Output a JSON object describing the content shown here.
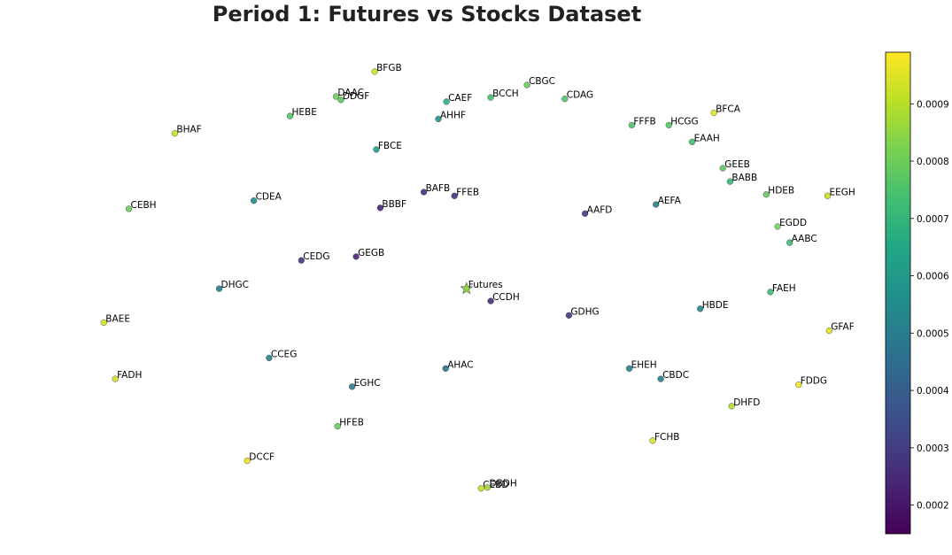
{
  "chart_data": {
    "type": "scatter",
    "title": "Period 1: Futures vs Stocks Dataset",
    "xlabel": "",
    "ylabel": "",
    "xlim": [
      0,
      1
    ],
    "ylim": [
      0,
      1
    ],
    "axes_visible": false,
    "grid": false,
    "colormap": "viridis",
    "colorbar": {
      "range": [
        0.00015,
        0.00099
      ],
      "ticks": [
        0.0002,
        0.0003,
        0.0004,
        0.0005,
        0.0006,
        0.0007,
        0.0008,
        0.0009
      ],
      "tick_labels": [
        "0.0002",
        "0.0003",
        "0.0004",
        "0.0005",
        "0.0006",
        "0.0007",
        "0.0008",
        "0.0009"
      ]
    },
    "futures": {
      "label": "Futures",
      "x": 0.502,
      "y": 0.498,
      "value": 0.00085,
      "marker": "star"
    },
    "points": [
      {
        "label": "BFGB",
        "x": 0.388,
        "y": 0.952,
        "value": 0.00093
      },
      {
        "label": "DAAC",
        "x": 0.34,
        "y": 0.9,
        "value": 0.0008
      },
      {
        "label": "DDGF",
        "x": 0.346,
        "y": 0.893,
        "value": 0.00077
      },
      {
        "label": "CAEF",
        "x": 0.477,
        "y": 0.889,
        "value": 0.00068
      },
      {
        "label": "BCCH",
        "x": 0.532,
        "y": 0.898,
        "value": 0.00074
      },
      {
        "label": "CBGC",
        "x": 0.577,
        "y": 0.924,
        "value": 0.00079
      },
      {
        "label": "CDAG",
        "x": 0.624,
        "y": 0.895,
        "value": 0.00076
      },
      {
        "label": "HEBE",
        "x": 0.283,
        "y": 0.859,
        "value": 0.00076
      },
      {
        "label": "AHHF",
        "x": 0.467,
        "y": 0.853,
        "value": 0.00058
      },
      {
        "label": "BFCA",
        "x": 0.809,
        "y": 0.866,
        "value": 0.00095
      },
      {
        "label": "FFFB",
        "x": 0.707,
        "y": 0.84,
        "value": 0.00075
      },
      {
        "label": "HCGG",
        "x": 0.753,
        "y": 0.84,
        "value": 0.00076
      },
      {
        "label": "BHAF",
        "x": 0.14,
        "y": 0.823,
        "value": 0.00092
      },
      {
        "label": "EAAH",
        "x": 0.782,
        "y": 0.805,
        "value": 0.00074
      },
      {
        "label": "FBCE",
        "x": 0.39,
        "y": 0.789,
        "value": 0.00061
      },
      {
        "label": "GEEB",
        "x": 0.82,
        "y": 0.75,
        "value": 0.00078
      },
      {
        "label": "BABB",
        "x": 0.829,
        "y": 0.722,
        "value": 0.00071
      },
      {
        "label": "BAFB",
        "x": 0.449,
        "y": 0.7,
        "value": 0.00026
      },
      {
        "label": "FFEB",
        "x": 0.487,
        "y": 0.692,
        "value": 0.00027
      },
      {
        "label": "HDEB",
        "x": 0.874,
        "y": 0.695,
        "value": 0.00079
      },
      {
        "label": "EEGH",
        "x": 0.95,
        "y": 0.692,
        "value": 0.00093
      },
      {
        "label": "CDEA",
        "x": 0.238,
        "y": 0.682,
        "value": 0.00055
      },
      {
        "label": "AEFA",
        "x": 0.737,
        "y": 0.674,
        "value": 0.00052
      },
      {
        "label": "CEBH",
        "x": 0.083,
        "y": 0.665,
        "value": 0.0008
      },
      {
        "label": "BBBF",
        "x": 0.395,
        "y": 0.667,
        "value": 0.00024
      },
      {
        "label": "AAFD",
        "x": 0.649,
        "y": 0.655,
        "value": 0.0003
      },
      {
        "label": "EGDD",
        "x": 0.888,
        "y": 0.628,
        "value": 0.00082
      },
      {
        "label": "AABC",
        "x": 0.903,
        "y": 0.594,
        "value": 0.00072
      },
      {
        "label": "CEDG",
        "x": 0.297,
        "y": 0.557,
        "value": 0.00028
      },
      {
        "label": "GEGB",
        "x": 0.365,
        "y": 0.565,
        "value": 0.00024
      },
      {
        "label": "DHGC",
        "x": 0.195,
        "y": 0.498,
        "value": 0.0005
      },
      {
        "label": "FAEH",
        "x": 0.879,
        "y": 0.491,
        "value": 0.00072
      },
      {
        "label": "CCDH",
        "x": 0.532,
        "y": 0.472,
        "value": 0.00025
      },
      {
        "label": "HBDE",
        "x": 0.792,
        "y": 0.456,
        "value": 0.00053
      },
      {
        "label": "GDHG",
        "x": 0.629,
        "y": 0.442,
        "value": 0.00029
      },
      {
        "label": "BAEE",
        "x": 0.052,
        "y": 0.427,
        "value": 0.00093
      },
      {
        "label": "GFAF",
        "x": 0.952,
        "y": 0.41,
        "value": 0.00095
      },
      {
        "label": "CCEG",
        "x": 0.257,
        "y": 0.353,
        "value": 0.00052
      },
      {
        "label": "AHAC",
        "x": 0.476,
        "y": 0.331,
        "value": 0.00048
      },
      {
        "label": "EHEH",
        "x": 0.704,
        "y": 0.331,
        "value": 0.00052
      },
      {
        "label": "FADH",
        "x": 0.066,
        "y": 0.309,
        "value": 0.00093
      },
      {
        "label": "CBDC",
        "x": 0.743,
        "y": 0.309,
        "value": 0.00051
      },
      {
        "label": "EGHC",
        "x": 0.36,
        "y": 0.293,
        "value": 0.0005
      },
      {
        "label": "FDDG",
        "x": 0.914,
        "y": 0.297,
        "value": 0.00097
      },
      {
        "label": "DHFD",
        "x": 0.831,
        "y": 0.252,
        "value": 0.00089
      },
      {
        "label": "HFEB",
        "x": 0.342,
        "y": 0.21,
        "value": 0.00079
      },
      {
        "label": "FCHB",
        "x": 0.733,
        "y": 0.18,
        "value": 0.00094
      },
      {
        "label": "DCCF",
        "x": 0.23,
        "y": 0.138,
        "value": 0.00096
      },
      {
        "label": "CEBD",
        "x": 0.52,
        "y": 0.08,
        "value": 0.00091
      },
      {
        "label": "DBDH",
        "x": 0.528,
        "y": 0.082,
        "value": 0.00088
      }
    ]
  }
}
